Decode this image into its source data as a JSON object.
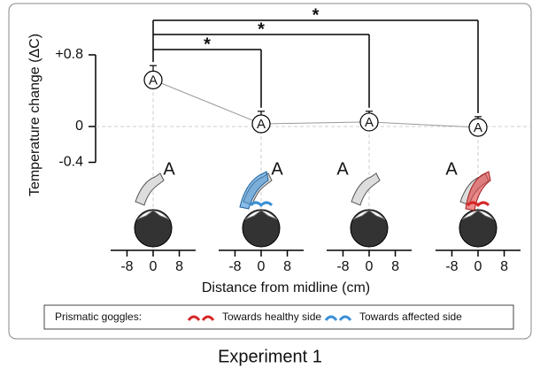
{
  "chart_data": {
    "type": "line",
    "y_label": "Temperature change (ΔC)",
    "categories": [
      null,
      null,
      null,
      null
    ],
    "values": [
      0.52,
      0.03,
      0.05,
      -0.01
    ],
    "errors": [
      0.16,
      0.14,
      0.12,
      0.12
    ],
    "color": "#999999",
    "marker_label": "A",
    "illustration_labels": [
      "A",
      "A",
      "A",
      "A"
    ],
    "ylim": [
      -0.4,
      0.8
    ],
    "yticks": [
      {
        "value": 0.8,
        "label": "+0.8"
      },
      0,
      -0.4
    ],
    "grid": true,
    "significance": [
      "*",
      "*",
      "*"
    ],
    "xlim": [
      -13,
      13
    ],
    "xticks": [
      -8,
      0,
      8
    ],
    "x_label": "Distance from midline (cm)",
    "legend": {
      "title": "Prismatic goggles:",
      "items": [
        {
          "name": "Towards healthy side",
          "color": "#d62728"
        },
        {
          "name": "Towards affected side",
          "color": "#3a8fd6"
        }
      ]
    },
    "caption": "Experiment 1"
  }
}
